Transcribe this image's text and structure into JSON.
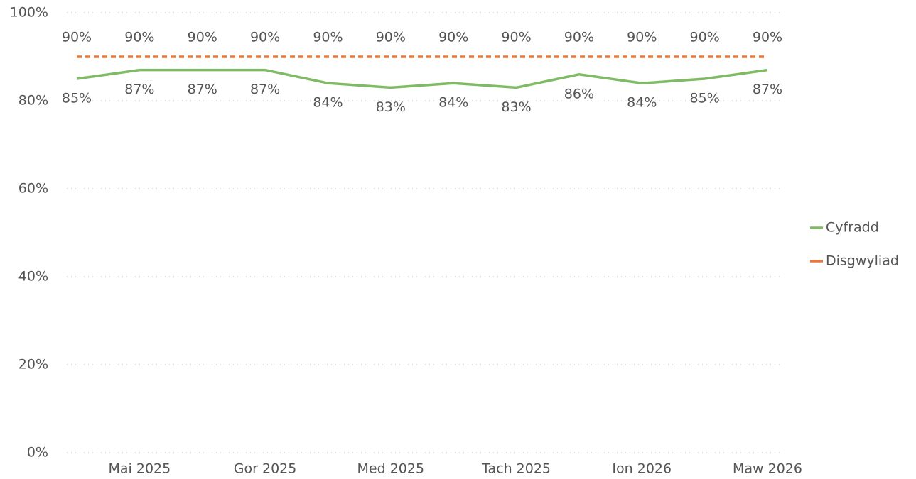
{
  "chart_data": {
    "type": "line",
    "categories": [
      null,
      "Mai 2025",
      null,
      "Gor 2025",
      null,
      "Med 2025",
      null,
      "Tach 2025",
      null,
      "Ion 2026",
      null,
      "Maw 2026"
    ],
    "series": [
      {
        "name": "Cyfradd",
        "color": "#7fba64",
        "line_style": "solid",
        "values": [
          85,
          87,
          87,
          87,
          84,
          83,
          84,
          83,
          86,
          84,
          85,
          87
        ],
        "value_labels": [
          "85%",
          "87%",
          "87%",
          "87%",
          "84%",
          "83%",
          "84%",
          "83%",
          "86%",
          "84%",
          "85%",
          "87%"
        ]
      },
      {
        "name": "Disgwyliad",
        "color": "#e5793d",
        "line_style": "dashed",
        "values": [
          90,
          90,
          90,
          90,
          90,
          90,
          90,
          90,
          90,
          90,
          90,
          90
        ],
        "value_labels": [
          "90%",
          "90%",
          "90%",
          "90%",
          "90%",
          "90%",
          "90%",
          "90%",
          "90%",
          "90%",
          "90%",
          "90%"
        ]
      }
    ],
    "ylim": [
      0,
      100
    ],
    "yticks": [
      {
        "value": 0,
        "label": "0%"
      },
      {
        "value": 20,
        "label": "20%"
      },
      {
        "value": 40,
        "label": "40%"
      },
      {
        "value": 60,
        "label": "60%"
      },
      {
        "value": 80,
        "label": "80%"
      },
      {
        "value": 100,
        "label": "100%"
      }
    ],
    "grid": true,
    "legend": "right"
  }
}
